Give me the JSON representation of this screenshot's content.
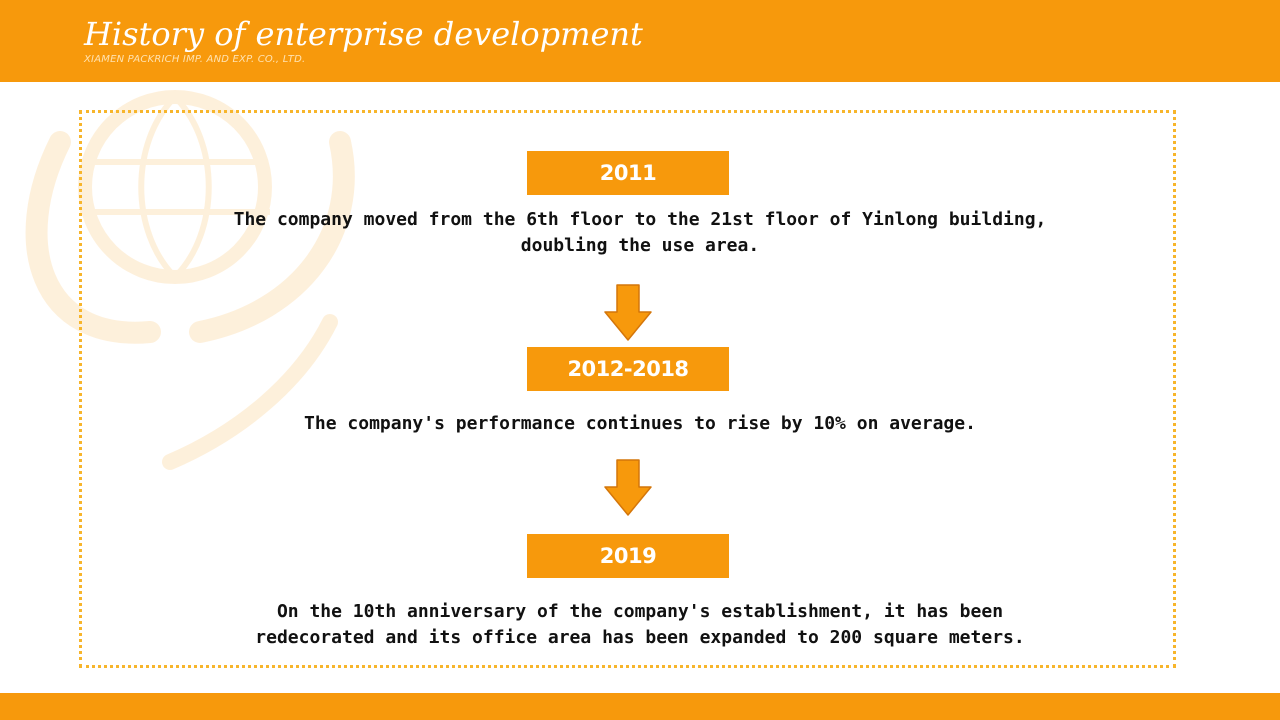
{
  "header": {
    "title": "History of enterprise development",
    "subtitle": "XIAMEN PACKRICH IMP. AND EXP. CO., LTD."
  },
  "timeline": [
    {
      "year": "2011",
      "description_lines": [
        "The company moved from the 6th floor to the 21st floor of Yinlong building,",
        "doubling the use area."
      ]
    },
    {
      "year": "2012-2018",
      "description_lines": [
        "The company's performance continues to rise by 10% on average."
      ]
    },
    {
      "year": "2019",
      "description_lines": [
        "On the 10th anniversary of the company's establishment, it has been",
        "redecorated and its office area has been expanded to 200 square meters."
      ]
    }
  ],
  "icons": {
    "arrow": "arrow-down-icon",
    "decoration": "globe-watermark-icon"
  },
  "colors": {
    "accent": "#f7990c",
    "frame_border": "#f7b52b",
    "arrow_stroke": "#d4760a",
    "text": "#111111",
    "header_text": "#ffffff"
  }
}
